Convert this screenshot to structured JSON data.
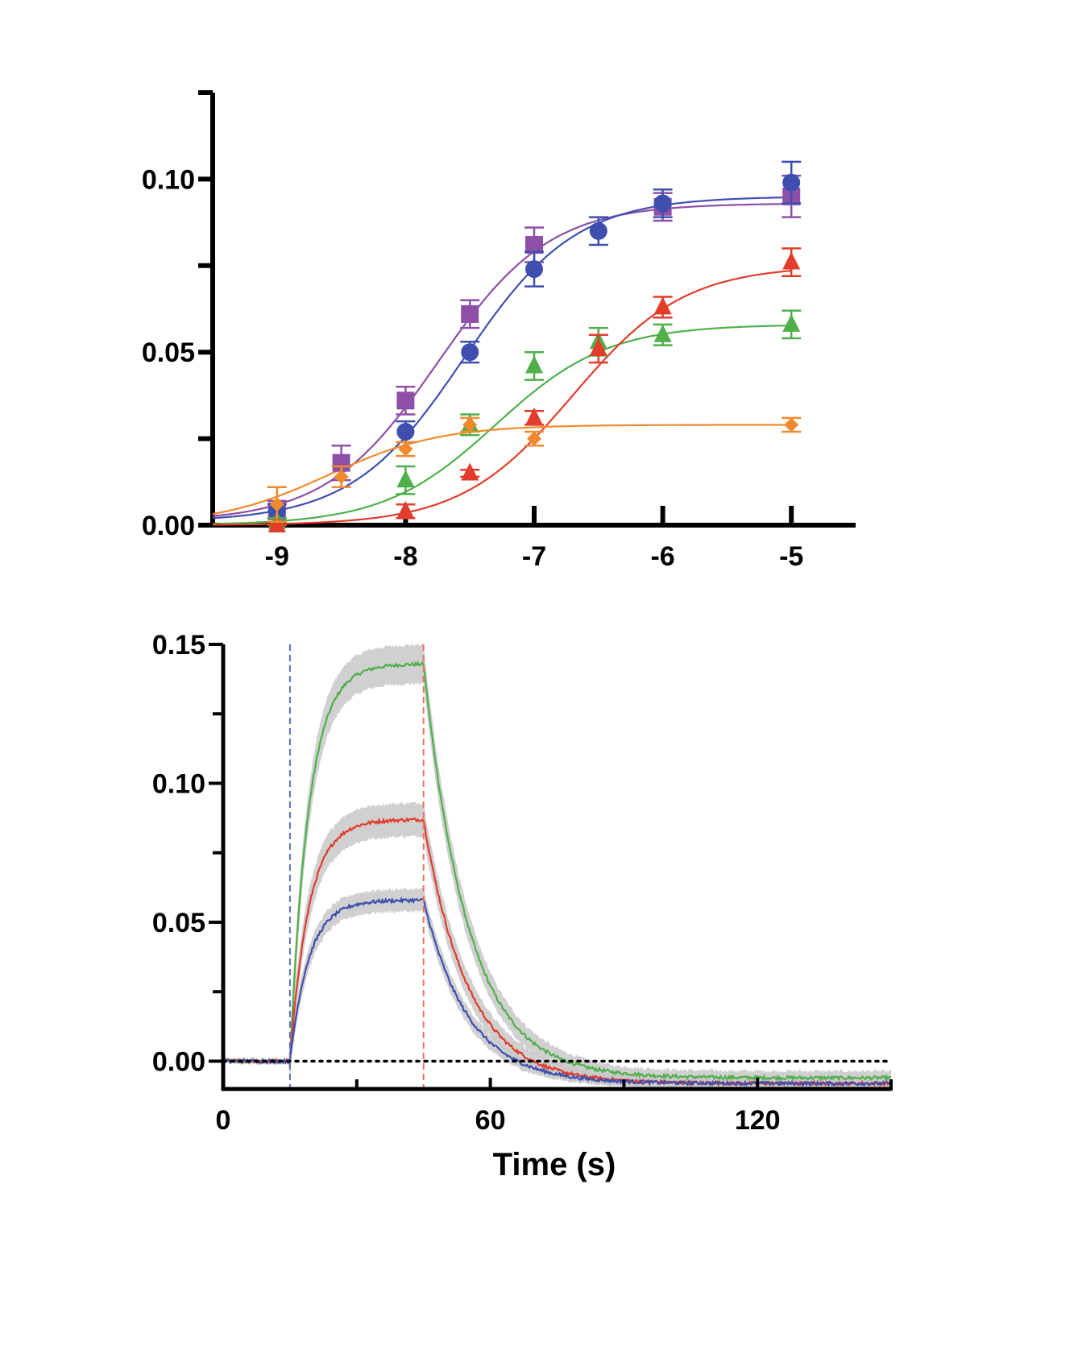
{
  "chart_data": [
    {
      "type": "scatter",
      "title": "",
      "xlabel": "",
      "ylabel": "",
      "xlim": [
        -9.5,
        -4.5
      ],
      "ylim": [
        0,
        0.125
      ],
      "x_ticks": [
        -9,
        -8,
        -7,
        -6,
        -5
      ],
      "x_tick_labels": [
        "-9",
        "-8",
        "-7",
        "-6",
        "-5"
      ],
      "y_ticks": [
        0,
        0.05,
        0.1
      ],
      "y_tick_labels": [
        "0.00",
        "0.05",
        "0.10"
      ],
      "y_minor_ticks": [
        0.025,
        0.075,
        0.125
      ],
      "grid": false,
      "series": [
        {
          "name": "purple",
          "color": "#8e4fa6",
          "marker": "square",
          "x": [
            -9,
            -8.5,
            -8,
            -7.5,
            -7,
            -6,
            -5
          ],
          "y": [
            0.004,
            0.018,
            0.036,
            0.061,
            0.081,
            0.092,
            0.095
          ],
          "err": [
            0.003,
            0.005,
            0.004,
            0.004,
            0.005,
            0.004,
            0.006
          ],
          "fit": {
            "bottom": 0.001,
            "top": 0.093,
            "ec50_log": -7.75,
            "hill": 1
          }
        },
        {
          "name": "blue",
          "color": "#3f4fb0",
          "marker": "circle",
          "x": [
            -9,
            -8,
            -7.5,
            -7,
            -6.5,
            -6,
            -5
          ],
          "y": [
            0.004,
            0.027,
            0.05,
            0.074,
            0.085,
            0.093,
            0.099
          ],
          "err": [
            0.002,
            0.003,
            0.003,
            0.005,
            0.004,
            0.004,
            0.006
          ],
          "fit": {
            "bottom": 0.001,
            "top": 0.095,
            "ec50_log": -7.55,
            "hill": 1
          }
        },
        {
          "name": "green",
          "color": "#4fb04a",
          "marker": "triangle",
          "x": [
            -9,
            -8,
            -7.5,
            -7,
            -6.5,
            -6,
            -5
          ],
          "y": [
            0.001,
            0.013,
            0.029,
            0.046,
            0.053,
            0.055,
            0.058
          ],
          "err": [
            0.001,
            0.004,
            0.003,
            0.004,
            0.004,
            0.003,
            0.004
          ],
          "fit": {
            "bottom": 0.0,
            "top": 0.058,
            "ec50_log": -7.3,
            "hill": 1
          }
        },
        {
          "name": "red",
          "color": "#e23c2b",
          "marker": "triangle",
          "x": [
            -9,
            -8,
            -7.5,
            -7,
            -6.5,
            -6,
            -5
          ],
          "y": [
            0.0,
            0.004,
            0.015,
            0.031,
            0.051,
            0.063,
            0.076
          ],
          "err": [
            0.001,
            0.002,
            0.001,
            0.002,
            0.004,
            0.003,
            0.004
          ],
          "fit": {
            "bottom": 0.0,
            "top": 0.075,
            "ec50_log": -6.7,
            "hill": 1
          }
        },
        {
          "name": "orange",
          "color": "#f08a2c",
          "marker": "diamond",
          "x": [
            -9,
            -8.5,
            -8,
            -7.5,
            -7,
            -5
          ],
          "y": [
            0.006,
            0.014,
            0.022,
            0.029,
            0.025,
            0.029
          ],
          "err": [
            0.005,
            0.003,
            0.002,
            0.002,
            0.002,
            0.002
          ],
          "fit": {
            "bottom": 0.0,
            "top": 0.029,
            "ec50_log": -8.6,
            "hill": 1
          }
        }
      ]
    },
    {
      "type": "line",
      "title": "",
      "xlabel": "Time (s)",
      "ylabel": "",
      "xlim": [
        0,
        150
      ],
      "ylim": [
        -0.01,
        0.15
      ],
      "x_ticks": [
        0,
        60,
        120
      ],
      "x_tick_labels": [
        "0",
        "60",
        "120"
      ],
      "x_minor_ticks": [
        30,
        90,
        150
      ],
      "y_ticks": [
        0,
        0.05,
        0.1,
        0.15
      ],
      "y_tick_labels": [
        "0.00",
        "0.05",
        "0.10",
        "0.15"
      ],
      "y_minor_ticks": [
        0.025,
        0.075,
        0.125
      ],
      "grid": false,
      "baseline": {
        "y": 0,
        "style": "dotted",
        "color": "#000000"
      },
      "vlines": [
        {
          "x": 15,
          "color": "#5b6cc6",
          "style": "dashed"
        },
        {
          "x": 45,
          "color": "#e8745e",
          "style": "dashed"
        }
      ],
      "band_color": "#c8c8c8",
      "series": [
        {
          "name": "green",
          "color": "#4fb04a",
          "plateau": 0.143,
          "undershoot": -0.006,
          "band": 0.007,
          "t": [
            0,
            15,
            18,
            25,
            35,
            45,
            55,
            65,
            75,
            85,
            100,
            120,
            150
          ],
          "y": [
            0,
            0,
            0.105,
            0.128,
            0.139,
            0.143,
            0.077,
            0.031,
            0.01,
            0.001,
            -0.004,
            -0.006,
            -0.006
          ]
        },
        {
          "name": "red",
          "color": "#e23c2b",
          "plateau": 0.087,
          "undershoot": -0.008,
          "band": 0.006,
          "t": [
            0,
            15,
            18,
            25,
            35,
            45,
            55,
            65,
            75,
            85,
            100,
            120,
            150
          ],
          "y": [
            0,
            0,
            0.055,
            0.079,
            0.086,
            0.084,
            0.034,
            0.011,
            0.001,
            -0.004,
            -0.007,
            -0.008,
            -0.008
          ]
        },
        {
          "name": "blue",
          "color": "#3f4fb0",
          "plateau": 0.058,
          "undershoot": -0.008,
          "band": 0.004,
          "t": [
            0,
            15,
            18,
            25,
            35,
            45,
            55,
            65,
            75,
            85,
            100,
            120,
            150
          ],
          "y": [
            0,
            0,
            0.03,
            0.05,
            0.057,
            0.058,
            0.025,
            0.007,
            -0.002,
            -0.006,
            -0.008,
            -0.008,
            -0.008
          ]
        }
      ]
    }
  ]
}
